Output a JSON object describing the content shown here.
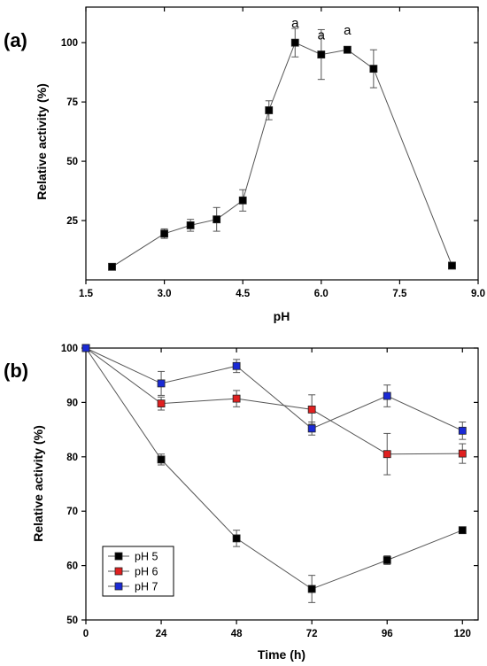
{
  "chart_data": [
    {
      "panel_label": "(a)",
      "type": "line",
      "xlabel": "pH",
      "ylabel": "Relative activity (%)",
      "xlim": [
        1.5,
        9.0
      ],
      "ylim": [
        0,
        115
      ],
      "xticks": [
        "1.5",
        "3.0",
        "4.5",
        "6.0",
        "7.5",
        "9.0"
      ],
      "yticks": [
        "25",
        "50",
        "75",
        "100"
      ],
      "marker": "square",
      "series": [
        {
          "color": "#000000",
          "x": [
            2.0,
            3.0,
            3.5,
            4.0,
            4.5,
            5.0,
            5.5,
            6.0,
            6.5,
            7.0,
            8.5
          ],
          "y": [
            5.5,
            19.5,
            23,
            25.5,
            33.5,
            71.5,
            100,
            95,
            97,
            89,
            6
          ],
          "err": [
            0,
            2,
            2.5,
            5,
            4.5,
            4,
            6,
            10.5,
            1,
            8,
            0
          ]
        }
      ],
      "annotations": [
        {
          "text": "a",
          "x": 5.5,
          "y": 100
        },
        {
          "text": "a",
          "x": 6.0,
          "y": 95
        },
        {
          "text": "a",
          "x": 6.5,
          "y": 97
        }
      ]
    },
    {
      "panel_label": "(b)",
      "type": "line",
      "xlabel": "Time (h)",
      "ylabel": "Relative activity (%)",
      "xlim": [
        0,
        125
      ],
      "ylim": [
        50,
        100
      ],
      "xticks": [
        "0",
        "24",
        "48",
        "72",
        "96",
        "120"
      ],
      "yticks": [
        "50",
        "60",
        "70",
        "80",
        "90",
        "100"
      ],
      "marker": "square",
      "legend_position": "bottom-left",
      "series": [
        {
          "name": "pH 5",
          "color": "#000000",
          "x": [
            0,
            24,
            48,
            72,
            96,
            120
          ],
          "y": [
            100,
            79.5,
            65,
            55.7,
            61,
            66.5
          ],
          "err": [
            0,
            1,
            1.5,
            2.5,
            0.8,
            0
          ]
        },
        {
          "name": "pH 6",
          "color": "#e02020",
          "x": [
            0,
            24,
            48,
            72,
            96,
            120
          ],
          "y": [
            100,
            89.8,
            90.7,
            88.7,
            80.5,
            80.6
          ],
          "err": [
            0,
            1.2,
            1.5,
            2.7,
            3.8,
            1.8
          ]
        },
        {
          "name": "pH 7",
          "color": "#1a2ad6",
          "x": [
            0,
            24,
            48,
            72,
            96,
            120
          ],
          "y": [
            100,
            93.5,
            96.7,
            85.2,
            91.2,
            84.8
          ],
          "err": [
            0,
            2.2,
            1.2,
            1.2,
            2,
            1.6
          ]
        }
      ]
    }
  ]
}
